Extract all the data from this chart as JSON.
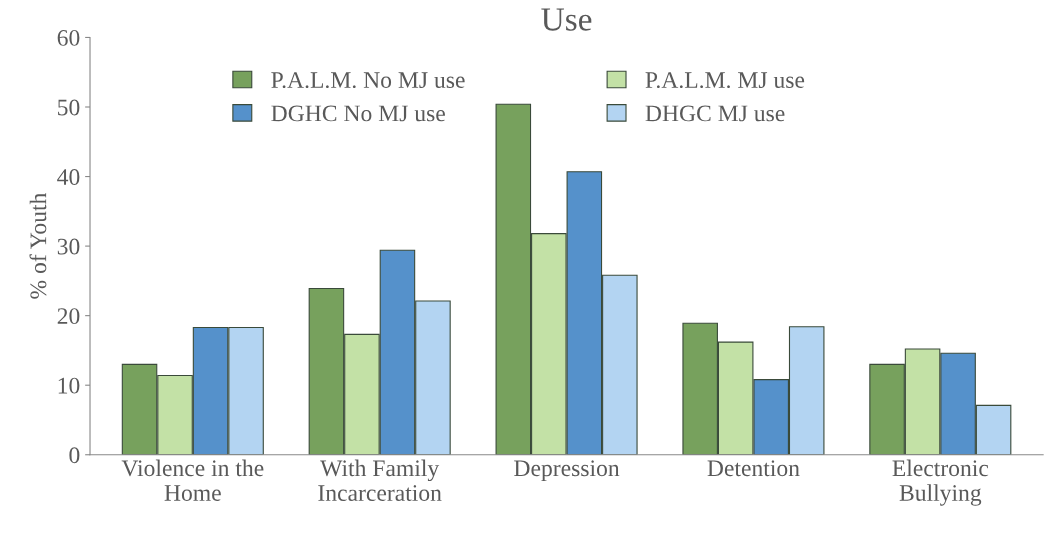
{
  "chart_data": {
    "type": "bar",
    "title": "Use",
    "ylabel": "% of Youth",
    "categories": [
      "Violence in the\nHome",
      "With Family\nIncarceration",
      "Depression",
      "Detention",
      "Electronic\nBullying"
    ],
    "series": [
      {
        "name": "P.A.L.M. No MJ use",
        "color": "#77a15d",
        "values": [
          13.0,
          23.9,
          50.4,
          18.9,
          13.0
        ]
      },
      {
        "name": "P.A.L.M. MJ use",
        "color": "#c3e1a6",
        "values": [
          11.4,
          17.3,
          31.8,
          16.2,
          15.2
        ]
      },
      {
        "name": "DGHC No MJ use",
        "color": "#5591cb",
        "values": [
          18.3,
          29.4,
          40.7,
          10.8,
          14.6
        ]
      },
      {
        "name": "DHGC MJ use",
        "color": "#b3d4f2",
        "values": [
          18.3,
          22.1,
          25.8,
          18.4,
          7.1
        ]
      }
    ],
    "ylim": [
      0,
      60
    ],
    "yticks": [
      0,
      10,
      20,
      30,
      40,
      50,
      60
    ],
    "grid": false,
    "legend": "top"
  }
}
